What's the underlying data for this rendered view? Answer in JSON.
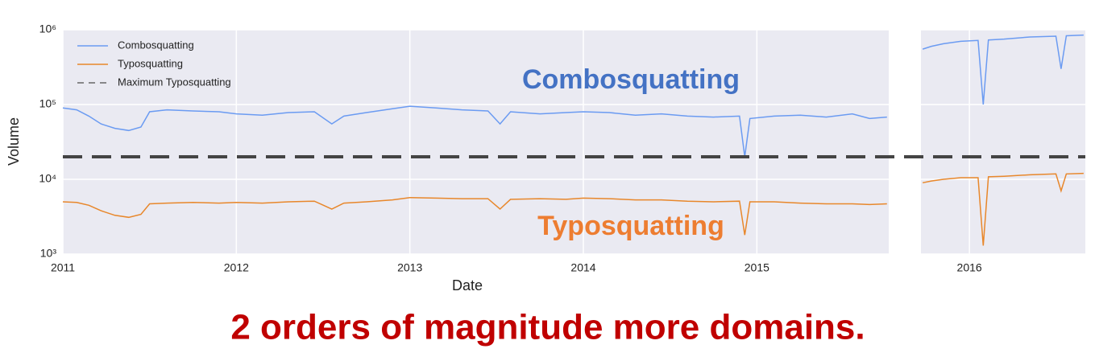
{
  "chart_data": [
    {
      "type": "line",
      "ylabel": "Volume",
      "xlabel": "Date",
      "log_y": true,
      "grid": true,
      "legend": "upper left",
      "xlim": [
        2011,
        2015.76
      ],
      "xticks": [
        2011,
        2012,
        2013,
        2014,
        2015
      ],
      "ylim": [
        1000,
        1000000
      ],
      "yticks": [
        {
          "value": 1000,
          "label": "10³"
        },
        {
          "value": 10000,
          "label": "10⁴"
        },
        {
          "value": 100000,
          "label": "10⁵"
        },
        {
          "value": 1000000,
          "label": "10⁶"
        }
      ],
      "x": [
        2011.0,
        2011.08,
        2011.15,
        2011.22,
        2011.3,
        2011.38,
        2011.45,
        2011.5,
        2011.6,
        2011.75,
        2011.9,
        2012.0,
        2012.15,
        2012.3,
        2012.45,
        2012.55,
        2012.62,
        2012.75,
        2012.9,
        2013.0,
        2013.15,
        2013.3,
        2013.45,
        2013.52,
        2013.58,
        2013.75,
        2013.9,
        2014.0,
        2014.15,
        2014.3,
        2014.45,
        2014.6,
        2014.75,
        2014.9,
        2014.93,
        2014.96,
        2015.1,
        2015.25,
        2015.4,
        2015.55,
        2015.65,
        2015.75
      ],
      "series": [
        {
          "name": "Combosquatting",
          "color": "#6b9bf2",
          "values": [
            90000,
            85000,
            70000,
            55000,
            48000,
            45000,
            50000,
            80000,
            85000,
            82000,
            80000,
            75000,
            72000,
            78000,
            80000,
            55000,
            70000,
            78000,
            88000,
            95000,
            90000,
            85000,
            82000,
            55000,
            80000,
            75000,
            78000,
            80000,
            78000,
            72000,
            75000,
            70000,
            68000,
            70000,
            20000,
            65000,
            70000,
            72000,
            68000,
            75000,
            65000,
            68000
          ]
        },
        {
          "name": "Typosquatting",
          "color": "#e8872b",
          "values": [
            5000,
            4900,
            4500,
            3800,
            3300,
            3100,
            3400,
            4700,
            4800,
            4900,
            4800,
            4900,
            4800,
            5000,
            5100,
            4000,
            4800,
            5000,
            5300,
            5700,
            5600,
            5500,
            5500,
            4000,
            5400,
            5500,
            5400,
            5600,
            5500,
            5300,
            5300,
            5100,
            5000,
            5100,
            1800,
            5000,
            5000,
            4800,
            4700,
            4700,
            4600,
            4700
          ]
        }
      ],
      "hline": {
        "name": "Maximum Typosquatting",
        "value": 20000,
        "color": "#444444"
      },
      "annotations": [
        {
          "text": "Combosquatting",
          "color": "#4472c4"
        },
        {
          "text": "Typosquatting",
          "color": "#ed7d31"
        }
      ]
    },
    {
      "type": "line",
      "log_y": true,
      "grid": true,
      "xlim": [
        2015.72,
        2016.67
      ],
      "xticks": [
        2016
      ],
      "ylim": [
        1000,
        1000000
      ],
      "x": [
        2015.73,
        2015.78,
        2015.85,
        2015.95,
        2016.05,
        2016.08,
        2016.11,
        2016.2,
        2016.35,
        2016.5,
        2016.53,
        2016.56,
        2016.66
      ],
      "series": [
        {
          "color": "#6b9bf2",
          "values": [
            550000,
            600000,
            650000,
            700000,
            720000,
            100000,
            730000,
            750000,
            800000,
            820000,
            300000,
            830000,
            850000
          ]
        },
        {
          "color": "#e8872b",
          "values": [
            9000,
            9500,
            10000,
            10500,
            10500,
            1300,
            10800,
            11000,
            11500,
            11800,
            7000,
            11800,
            12000
          ]
        }
      ]
    }
  ],
  "caption": {
    "text": "2 orders of magnitude more domains.",
    "color": "#c00000"
  }
}
